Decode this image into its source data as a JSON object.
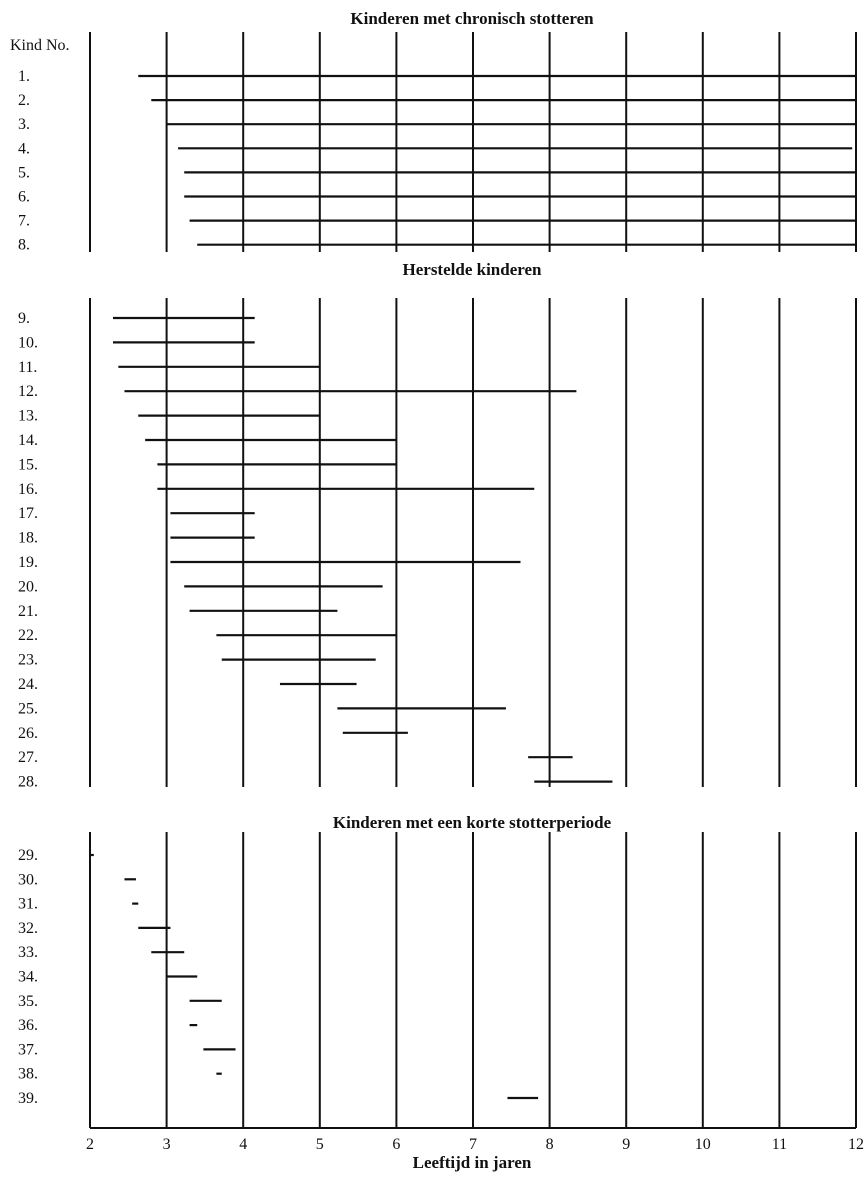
{
  "chart_data": {
    "type": "gantt",
    "row_header": "Kind No.",
    "xlabel": "Leeftijd in jaren",
    "x_ticks": [
      2,
      3,
      4,
      5,
      6,
      7,
      8,
      9,
      10,
      11,
      12
    ],
    "xlim": [
      2,
      12
    ],
    "panels": [
      {
        "title": "Kinderen met chronisch stotteren",
        "rows": [
          {
            "label": "1.",
            "start": 2.63,
            "end": 12.0
          },
          {
            "label": "2.",
            "start": 2.8,
            "end": 12.0
          },
          {
            "label": "3.",
            "start": 3.0,
            "end": 12.0
          },
          {
            "label": "4.",
            "start": 3.15,
            "end": 11.95
          },
          {
            "label": "5.",
            "start": 3.23,
            "end": 12.0
          },
          {
            "label": "6.",
            "start": 3.23,
            "end": 12.0
          },
          {
            "label": "7.",
            "start": 3.3,
            "end": 12.0
          },
          {
            "label": "8.",
            "start": 3.4,
            "end": 12.0
          }
        ]
      },
      {
        "title": "Herstelde kinderen",
        "rows": [
          {
            "label": "9.",
            "start": 2.3,
            "end": 4.15
          },
          {
            "label": "10.",
            "start": 2.3,
            "end": 4.15
          },
          {
            "label": "11.",
            "start": 2.37,
            "end": 5.0
          },
          {
            "label": "12.",
            "start": 2.45,
            "end": 8.35
          },
          {
            "label": "13.",
            "start": 2.63,
            "end": 5.0
          },
          {
            "label": "14.",
            "start": 2.72,
            "end": 6.0
          },
          {
            "label": "15.",
            "start": 2.88,
            "end": 6.0
          },
          {
            "label": "16.",
            "start": 2.88,
            "end": 7.8
          },
          {
            "label": "17.",
            "start": 3.05,
            "end": 4.15
          },
          {
            "label": "18.",
            "start": 3.05,
            "end": 4.15
          },
          {
            "label": "19.",
            "start": 3.05,
            "end": 7.62
          },
          {
            "label": "20.",
            "start": 3.23,
            "end": 5.82
          },
          {
            "label": "21.",
            "start": 3.3,
            "end": 5.23
          },
          {
            "label": "22.",
            "start": 3.65,
            "end": 6.0
          },
          {
            "label": "23.",
            "start": 3.72,
            "end": 5.73
          },
          {
            "label": "24.",
            "start": 4.48,
            "end": 5.48
          },
          {
            "label": "25.",
            "start": 5.23,
            "end": 7.43
          },
          {
            "label": "26.",
            "start": 5.3,
            "end": 6.15
          },
          {
            "label": "27.",
            "start": 7.72,
            "end": 8.3
          },
          {
            "label": "28.",
            "start": 7.8,
            "end": 8.82
          }
        ]
      },
      {
        "title": "Kinderen met een korte stotterperiode",
        "rows": [
          {
            "label": "29.",
            "start": 2.0,
            "end": 2.05
          },
          {
            "label": "30.",
            "start": 2.45,
            "end": 2.6
          },
          {
            "label": "31.",
            "start": 2.55,
            "end": 2.63
          },
          {
            "label": "32.",
            "start": 2.63,
            "end": 3.05
          },
          {
            "label": "33.",
            "start": 2.8,
            "end": 3.23
          },
          {
            "label": "34.",
            "start": 3.0,
            "end": 3.4
          },
          {
            "label": "35.",
            "start": 3.3,
            "end": 3.72
          },
          {
            "label": "36.",
            "start": 3.3,
            "end": 3.4
          },
          {
            "label": "37.",
            "start": 3.48,
            "end": 3.9
          },
          {
            "label": "38.",
            "start": 3.65,
            "end": 3.72
          },
          {
            "label": "39.",
            "start": 7.45,
            "end": 7.85
          }
        ]
      }
    ]
  }
}
